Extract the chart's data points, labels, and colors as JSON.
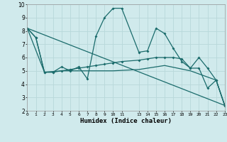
{
  "xlabel": "Humidex (Indice chaleur)",
  "xlim": [
    0,
    23
  ],
  "ylim": [
    2,
    10
  ],
  "yticks": [
    2,
    3,
    4,
    5,
    6,
    7,
    8,
    9,
    10
  ],
  "bg_color": "#d0eaec",
  "grid_color": "#b8d8da",
  "line_color": "#1a6b6b",
  "line1_x": [
    0,
    1,
    2,
    3,
    4,
    5,
    6,
    7,
    8,
    9,
    10,
    11,
    13,
    14,
    15,
    16,
    17,
    18,
    19,
    20,
    21,
    22,
    23
  ],
  "line1_y": [
    8.2,
    7.5,
    4.9,
    4.9,
    5.3,
    5.0,
    5.3,
    4.4,
    7.6,
    9.0,
    9.7,
    9.7,
    6.4,
    6.5,
    8.2,
    7.8,
    6.7,
    5.7,
    5.2,
    6.0,
    5.2,
    4.3,
    2.4
  ],
  "line2_x": [
    0,
    1,
    2,
    3,
    4,
    5,
    6,
    7,
    8,
    9,
    10,
    11,
    13,
    14,
    15,
    16,
    17,
    18,
    19,
    20,
    21,
    22,
    23
  ],
  "line2_y": [
    8.2,
    7.5,
    4.9,
    4.9,
    5.0,
    5.1,
    5.2,
    5.3,
    5.4,
    5.5,
    5.6,
    5.7,
    5.8,
    5.9,
    6.0,
    6.0,
    6.0,
    5.9,
    5.2,
    5.2,
    3.7,
    4.3,
    2.4
  ],
  "line3_x": [
    0,
    2,
    4,
    6,
    8,
    10,
    13,
    16,
    19,
    22,
    23
  ],
  "line3_y": [
    8.2,
    4.9,
    5.0,
    5.0,
    5.0,
    5.0,
    5.1,
    5.4,
    5.0,
    4.3,
    2.4
  ],
  "line4_x": [
    0,
    23
  ],
  "line4_y": [
    8.2,
    2.4
  ]
}
